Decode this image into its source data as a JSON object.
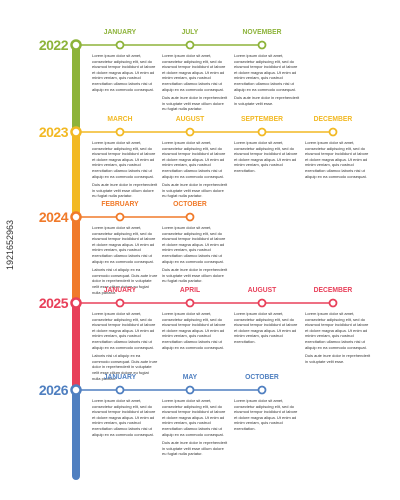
{
  "stock_id": "1921652963",
  "years": [
    {
      "year": "2022",
      "color": "#8db33a",
      "months": [
        {
          "name": "JANUARY",
          "paragraphs": [
            "Lorem ipsum dolor sit amet, consectetur adipiscing elit, sed do eiusmod tempor incididunt ut labore et dolore magna aliqua. Ut enim ad minim veniam, quis nostrud exercitation ullamco laboris nisi ut aliquip ex ea commodo consequat."
          ]
        },
        {
          "name": "JULY",
          "paragraphs": [
            "Lorem ipsum dolor sit amet, consectetur adipiscing elit, sed do eiusmod tempor incididunt ut labore et dolore magna aliqua. Ut enim ad minim veniam, quis nostrud exercitation ullamco laboris nisi ut aliquip ex ea commodo consequat.",
            "Duis aute irure dolor in reprehenderit in voluptate velit esse cillum dolore eu fugiat nulla pariatur."
          ]
        },
        {
          "name": "NOVEMBER",
          "paragraphs": [
            "Lorem ipsum dolor sit amet, consectetur adipiscing elit, sed do eiusmod tempor incididunt ut labore et dolore magna aliqua. Ut enim ad minim veniam, quis nostrud exercitation ullamco laboris nisi ut aliquip ex ea commodo consequat.",
            "Duis aute irure dolor in reprehenderit in voluptate velit esse."
          ]
        }
      ]
    },
    {
      "year": "2023",
      "color": "#f2b924",
      "months": [
        {
          "name": "MARCH",
          "paragraphs": [
            "Lorem ipsum dolor sit amet, consectetur adipiscing elit, sed do eiusmod tempor incididunt ut labore et dolore magna aliqua. Ut enim ad minim veniam, quis nostrud exercitation ullamco laboris nisi ut aliquip ex ea commodo consequat.",
            "Duis aute irure dolor in reprehenderit in voluptate velit esse cillum dolore eu fugiat nulla pariatur."
          ]
        },
        {
          "name": "AUGUST",
          "paragraphs": [
            "Lorem ipsum dolor sit amet, consectetur adipiscing elit, sed do eiusmod tempor incididunt ut labore et dolore magna aliqua. Ut enim ad minim veniam, quis nostrud exercitation ullamco laboris nisi ut aliquip ex ea commodo consequat.",
            "Duis aute irure dolor in reprehenderit in voluptate velit esse cillum dolore eu fugiat nulla pariatur."
          ]
        },
        {
          "name": "SEPTEMBER",
          "paragraphs": [
            "Lorem ipsum dolor sit amet, consectetur adipiscing elit, sed do eiusmod tempor incididunt ut labore et dolore magna aliqua. Ut enim ad minim veniam, quis nostrud exercitation."
          ]
        },
        {
          "name": "DECEMBER",
          "paragraphs": [
            "Lorem ipsum dolor sit amet, consectetur adipiscing elit, sed do eiusmod tempor incididunt ut labore et dolore magna aliqua. Ut enim ad minim veniam, quis nostrud exercitation ullamco laboris nisi ut aliquip ex ea commodo consequat."
          ]
        }
      ]
    },
    {
      "year": "2024",
      "color": "#f07a2a",
      "months": [
        {
          "name": "FEBRUARY",
          "paragraphs": [
            "Lorem ipsum dolor sit amet, consectetur adipiscing elit, sed do eiusmod tempor incididunt ut labore et dolore magna aliqua. Ut enim ad minim veniam, quis nostrud exercitation ullamco laboris nisi ut aliquip ex ea commodo consequat.",
            "Laboris nisi ut aliquip ex ea commodo consequat. Duis aute irure dolor in reprehenderit in voluptate velit esse cillum dolore eu fugiat nulla pariatur."
          ]
        },
        {
          "name": "OCTOBER",
          "paragraphs": [
            "Lorem ipsum dolor sit amet, consectetur adipiscing elit, sed do eiusmod tempor incididunt ut labore et dolore magna aliqua. Ut enim ad minim veniam, quis nostrud exercitation ullamco laboris nisi ut aliquip ex ea commodo consequat.",
            "Duis aute irure dolor in reprehenderit in voluptate velit esse cillum dolore eu fugiat nulla pariatur."
          ]
        }
      ]
    },
    {
      "year": "2025",
      "color": "#e8405a",
      "months": [
        {
          "name": "JANUARY",
          "paragraphs": [
            "Lorem ipsum dolor sit amet, consectetur adipiscing elit, sed do eiusmod tempor incididunt ut labore et dolore magna aliqua. Ut enim ad minim veniam, quis nostrud exercitation ullamco laboris nisi ut aliquip ex ea commodo consequat.",
            "Laboris nisi ut aliquip ex ea commodo consequat. Duis aute irure dolor in reprehenderit in voluptate velit esse cillum dolore eu fugiat nulla pariatur."
          ]
        },
        {
          "name": "APRIL",
          "paragraphs": [
            "Lorem ipsum dolor sit amet, consectetur adipiscing elit, sed do eiusmod tempor incididunt ut labore et dolore magna aliqua. Ut enim ad minim veniam, quis nostrud exercitation ullamco laboris nisi ut aliquip ex ea commodo consequat."
          ]
        },
        {
          "name": "AUGUST",
          "paragraphs": [
            "Lorem ipsum dolor sit amet, consectetur adipiscing elit, sed do eiusmod tempor incididunt ut labore et dolore magna aliqua. Ut enim ad minim veniam, quis nostrud exercitation."
          ]
        },
        {
          "name": "DECEMBER",
          "paragraphs": [
            "Lorem ipsum dolor sit amet, consectetur adipiscing elit, sed do eiusmod tempor incididunt ut labore et dolore magna aliqua. Ut enim ad minim veniam, quis nostrud exercitation ullamco laboris nisi ut aliquip ex ea commodo consequat.",
            "Duis aute irure dolor in reprehenderit in voluptate velit esse."
          ]
        }
      ]
    },
    {
      "year": "2026",
      "color": "#4f7fc0",
      "months": [
        {
          "name": "JANUARY",
          "paragraphs": [
            "Lorem ipsum dolor sit amet, consectetur adipiscing elit, sed do eiusmod tempor incididunt ut labore et dolore magna aliqua. Ut enim ad minim veniam, quis nostrud exercitation ullamco laboris nisi ut aliquip ex ea commodo consequat."
          ]
        },
        {
          "name": "MAY",
          "paragraphs": [
            "Lorem ipsum dolor sit amet, consectetur adipiscing elit, sed do eiusmod tempor incididunt ut labore et dolore magna aliqua. Ut enim ad minim veniam, quis nostrud exercitation ullamco laboris nisi ut aliquip ex ea commodo consequat.",
            "Duis aute irure dolor in reprehenderit in voluptate velit esse cillum dolore eu fugiat nulla pariatur."
          ]
        },
        {
          "name": "OCTOBER",
          "paragraphs": [
            "Lorem ipsum dolor sit amet, consectetur adipiscing elit, sed do eiusmod tempor incididunt ut labore et dolore magna aliqua. Ut enim ad minim veniam, quis nostrud exercitation."
          ]
        }
      ]
    }
  ]
}
